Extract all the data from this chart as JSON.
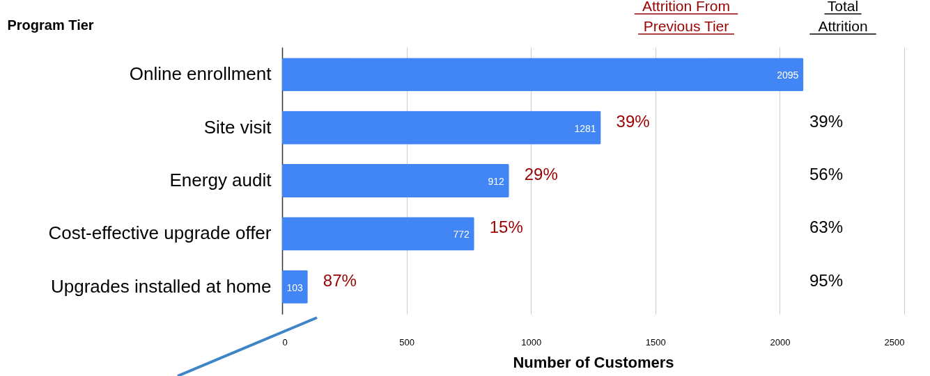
{
  "chart_data": {
    "type": "bar",
    "orientation": "horizontal",
    "ylabel": "Program Tier",
    "xlabel": "Number of Customers",
    "categories": [
      "Online enrollment",
      "Site visit",
      "Energy audit",
      "Cost-effective upgrade offer",
      "Upgrades installed at home"
    ],
    "values": [
      2095,
      1281,
      912,
      772,
      103
    ],
    "color": "#4285f4",
    "data_labels": true,
    "xlim": [
      0,
      2500
    ],
    "xticks": [
      0,
      500,
      1000,
      1500,
      2000,
      2500
    ],
    "grid": "x",
    "annotations": [
      "Attrition From Previous Tier",
      "Total Attrition",
      "39%",
      "29%",
      "15%",
      "87%",
      "39%",
      "56%",
      "63%",
      "95%"
    ]
  }
}
